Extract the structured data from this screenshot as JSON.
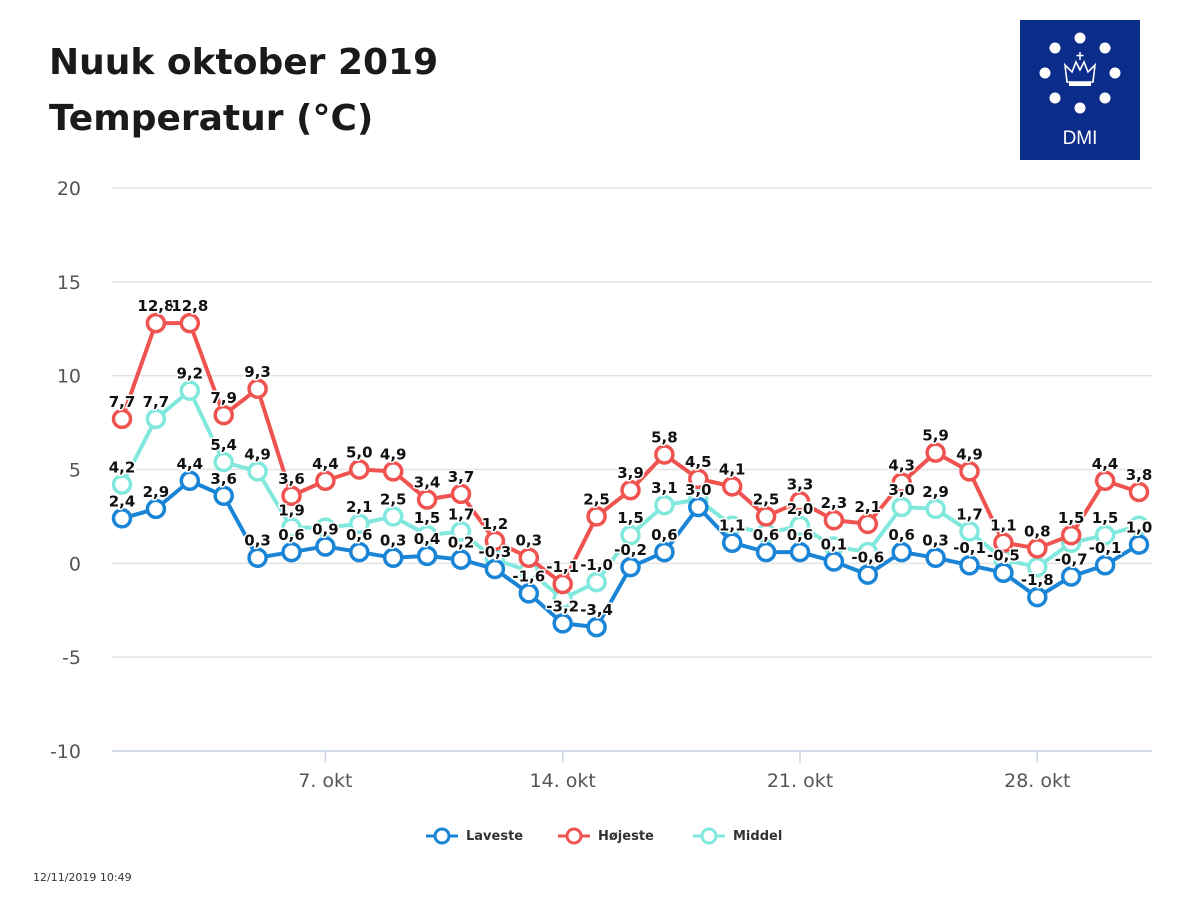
{
  "title_line1": "Nuuk oktober 2019",
  "title_line2": "Temperatur (°C)",
  "logo_text": "DMI",
  "timestamp": "12/11/2019 10:49",
  "colors": {
    "laveste": "#1a85d6",
    "hojeste": "#ef5350",
    "middel": "#80e8dc",
    "logo_bg": "#0c2c8a",
    "grid": "#e3e3e3",
    "axis": "#c9d4e6"
  },
  "chart_data": {
    "type": "line",
    "x": [
      1,
      2,
      3,
      4,
      5,
      6,
      7,
      8,
      9,
      10,
      11,
      12,
      13,
      14,
      15,
      16,
      17,
      18,
      19,
      20,
      21,
      22,
      23,
      24,
      25,
      26,
      27,
      28,
      29,
      30,
      31
    ],
    "x_tick_labels": [
      {
        "day": 7,
        "label": "7. okt"
      },
      {
        "day": 14,
        "label": "14. okt"
      },
      {
        "day": 21,
        "label": "21. okt"
      },
      {
        "day": 28,
        "label": "28. okt"
      }
    ],
    "ylim": [
      -10,
      20
    ],
    "y_ticks": [
      20,
      15,
      10,
      5,
      0,
      -5,
      -10
    ],
    "grid": true,
    "legend_position": "bottom-center",
    "series": [
      {
        "name": "Laveste",
        "color": "#1a85d6",
        "values": [
          2.4,
          2.9,
          4.4,
          3.6,
          0.3,
          0.6,
          0.9,
          0.6,
          0.3,
          0.4,
          0.2,
          -0.3,
          -1.6,
          -3.2,
          -3.4,
          -0.2,
          0.6,
          3.0,
          1.1,
          0.6,
          0.6,
          0.1,
          -0.6,
          0.6,
          0.3,
          -0.1,
          -0.5,
          -1.8,
          -0.7,
          -0.1,
          1.0
        ]
      },
      {
        "name": "Højeste",
        "color": "#ef5350",
        "values": [
          7.7,
          12.8,
          12.8,
          7.9,
          9.3,
          3.6,
          4.4,
          5.0,
          4.9,
          3.4,
          3.7,
          1.2,
          0.3,
          -1.1,
          2.5,
          3.9,
          5.8,
          4.5,
          4.1,
          2.5,
          3.3,
          2.3,
          2.1,
          4.3,
          5.9,
          4.9,
          1.1,
          0.8,
          1.5,
          4.4,
          3.8
        ]
      },
      {
        "name": "Middel",
        "color": "#80e8dc",
        "values": [
          4.2,
          7.7,
          9.2,
          5.4,
          4.9,
          1.9,
          1.9,
          2.1,
          2.5,
          1.5,
          1.7,
          0.2,
          -0.4,
          -1.9,
          -1.0,
          1.5,
          3.1,
          3.4,
          2.0,
          1.6,
          2.0,
          0.9,
          0.6,
          3.0,
          2.9,
          1.7,
          0.2,
          -0.2,
          1.1,
          1.5,
          2.0
        ]
      }
    ],
    "value_labels": {
      "Laveste": [
        "2,4",
        "2,9",
        "4,4",
        "3,6",
        "0,3",
        "0,6",
        "0,9",
        "0,6",
        "0,3",
        "0,4",
        "0,2",
        "-0,3",
        "-1,6",
        "-3,2",
        "-3,4",
        "-0,2",
        "0,6",
        "3,0",
        "1,1",
        "0,6",
        "0,6",
        "0,1",
        "-0,6",
        "0,6",
        "0,3",
        "-0,1",
        "-0,5",
        "-1,8",
        "-0,7",
        "-0,1",
        "1,0"
      ],
      "Højeste": [
        "7,7",
        "12,8",
        "12,8",
        "7,9",
        "9,3",
        "3,6",
        "4,4",
        "5,0",
        "4,9",
        "3,4",
        "3,7",
        "1,2",
        "0,3",
        "-1,1",
        "2,5",
        "3,9",
        "5,8",
        "4,5",
        "4,1",
        "2,5",
        "3,3",
        "2,3",
        "2,1",
        "4,3",
        "5,9",
        "4,9",
        "1,1",
        "0,8",
        "1,5",
        "4,4",
        "3,8"
      ],
      "Middel": [
        "4,2",
        "7,7",
        "9,2",
        "5,4",
        "4,9",
        "1,9",
        "",
        "2,1",
        "2,5",
        "1,5",
        "1,7",
        "",
        "",
        "",
        "-1,0",
        "1,5",
        "3,1",
        "",
        "",
        "",
        "2,0",
        "",
        "",
        "3,0",
        "2,9",
        "1,7",
        "",
        "",
        "",
        "1,5",
        ""
      ]
    }
  }
}
